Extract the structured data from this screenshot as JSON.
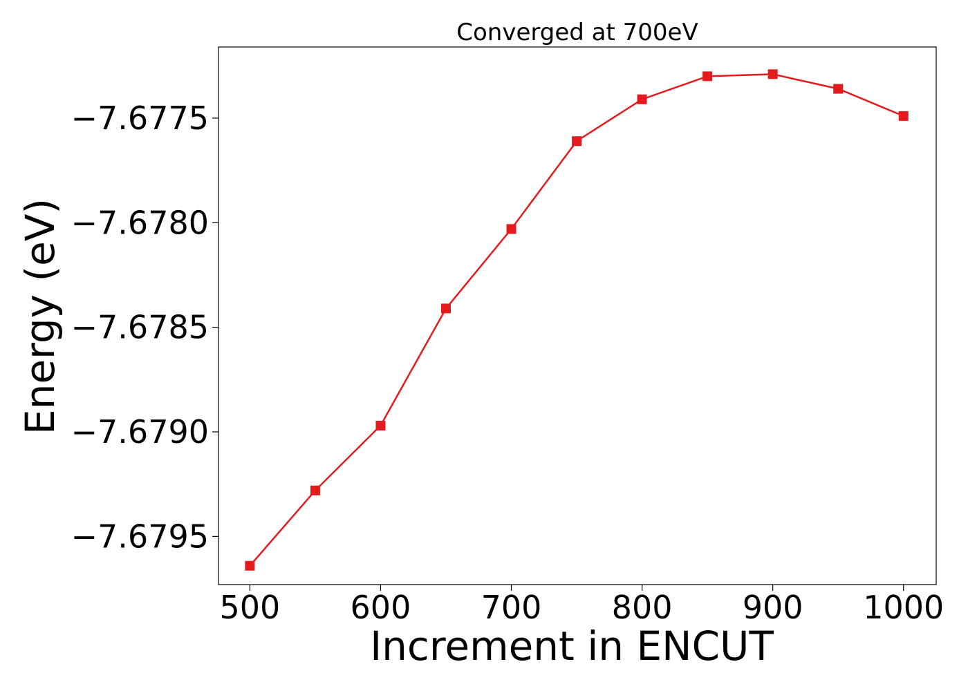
{
  "chart_data": {
    "type": "line",
    "title": "Converged at 700eV",
    "xlabel": "Increment in ENCUT",
    "ylabel": "Energy (eV)",
    "x": [
      500,
      550,
      600,
      650,
      700,
      750,
      800,
      850,
      900,
      950,
      1000
    ],
    "series": [
      {
        "values": [
          -7.67964,
          -7.67928,
          -7.67897,
          -7.67841,
          -7.67803,
          -7.67761,
          -7.67741,
          -7.6773,
          -7.67729,
          -7.67736,
          -7.67749
        ],
        "color": "#e41a1c",
        "marker": "square"
      }
    ],
    "xticks": [
      500,
      600,
      700,
      800,
      900,
      1000
    ],
    "xtick_labels": [
      "500",
      "600",
      "700",
      "800",
      "900",
      "1000"
    ],
    "yticks": [
      -7.6795,
      -7.679,
      -7.6785,
      -7.678,
      -7.6775
    ],
    "ytick_labels": [
      "−7.6795",
      "−7.6790",
      "−7.6785",
      "−7.6780",
      "−7.6775"
    ],
    "xlim": [
      476,
      1025
    ],
    "ylim": [
      -7.67973,
      -7.67716
    ],
    "grid": false,
    "legend": "none"
  }
}
